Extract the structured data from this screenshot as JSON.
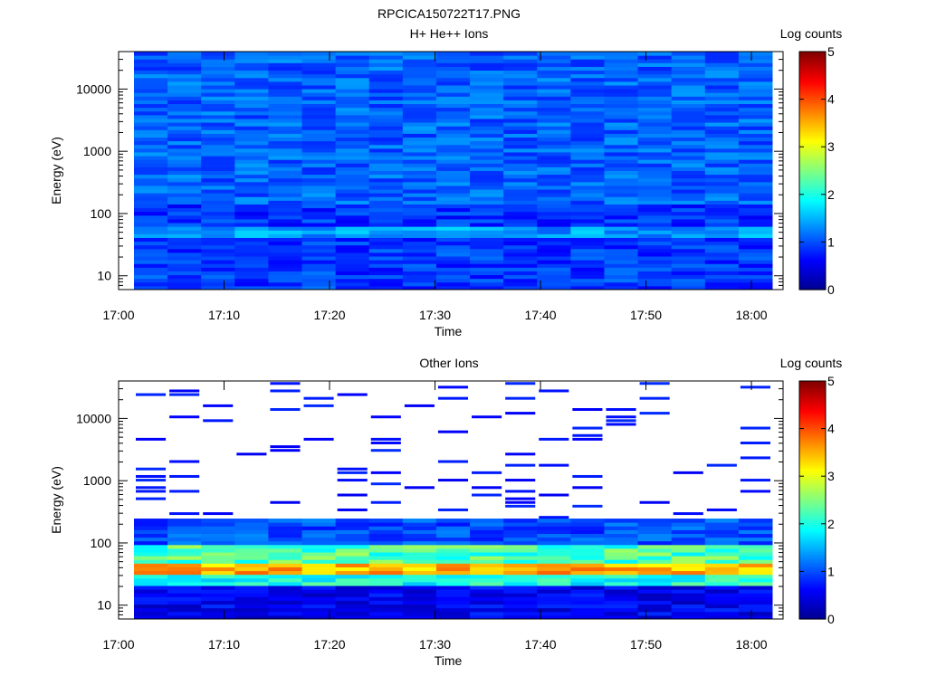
{
  "figure_title": "RPCICA150722T17.PNG",
  "colormap": [
    "#00008f",
    "#0000ff",
    "#0080ff",
    "#00ffff",
    "#80ff80",
    "#ffff00",
    "#ff8000",
    "#ff0000",
    "#800000"
  ],
  "chart_data": [
    {
      "type": "heatmap",
      "title": "H+ He++ Ions",
      "xlabel": "Time",
      "ylabel": "Energy (eV)",
      "colorbar_label": "Log counts",
      "x_ticks": [
        "17:00",
        "17:10",
        "17:20",
        "17:30",
        "17:40",
        "17:50",
        "18:00"
      ],
      "y_ticks": [
        "10",
        "100",
        "1000",
        "10000"
      ],
      "colorbar_ticks": [
        "0",
        "1",
        "2",
        "3",
        "4",
        "5"
      ],
      "y_scale": "log",
      "ylim_eV": [
        6,
        40000
      ],
      "xlim": [
        "17:00",
        "18:03"
      ],
      "data_xlim": [
        "17:01:15",
        "18:02:30"
      ],
      "clim": [
        0,
        5
      ],
      "time_columns": 19,
      "level_summary": {
        "10-40 eV": 0.9,
        "40-60 eV": 1.4,
        "60-150 eV": 0.85,
        "150-40000 eV": 1.1
      }
    },
    {
      "type": "heatmap",
      "title": "Other Ions",
      "xlabel": "Time",
      "ylabel": "Energy (eV)",
      "colorbar_label": "Log counts",
      "x_ticks": [
        "17:00",
        "17:10",
        "17:20",
        "17:30",
        "17:40",
        "17:50",
        "18:00"
      ],
      "y_ticks": [
        "10",
        "100",
        "1000",
        "10000"
      ],
      "colorbar_ticks": [
        "0",
        "1",
        "2",
        "3",
        "4",
        "5"
      ],
      "y_scale": "log",
      "ylim_eV": [
        6,
        40000
      ],
      "xlim": [
        "17:00",
        "18:03"
      ],
      "data_xlim": [
        "17:01:15",
        "18:02:30"
      ],
      "clim": [
        0,
        5
      ],
      "time_columns": 19,
      "level_summary": {
        "6-20 eV": 0.6,
        "20-30 eV": 2.0,
        "30-45 eV": 3.5,
        "45-100 eV": 2.2,
        "100-250 eV": 1.0,
        "250-40000 eV": "sparse, ~0.7"
      }
    }
  ]
}
